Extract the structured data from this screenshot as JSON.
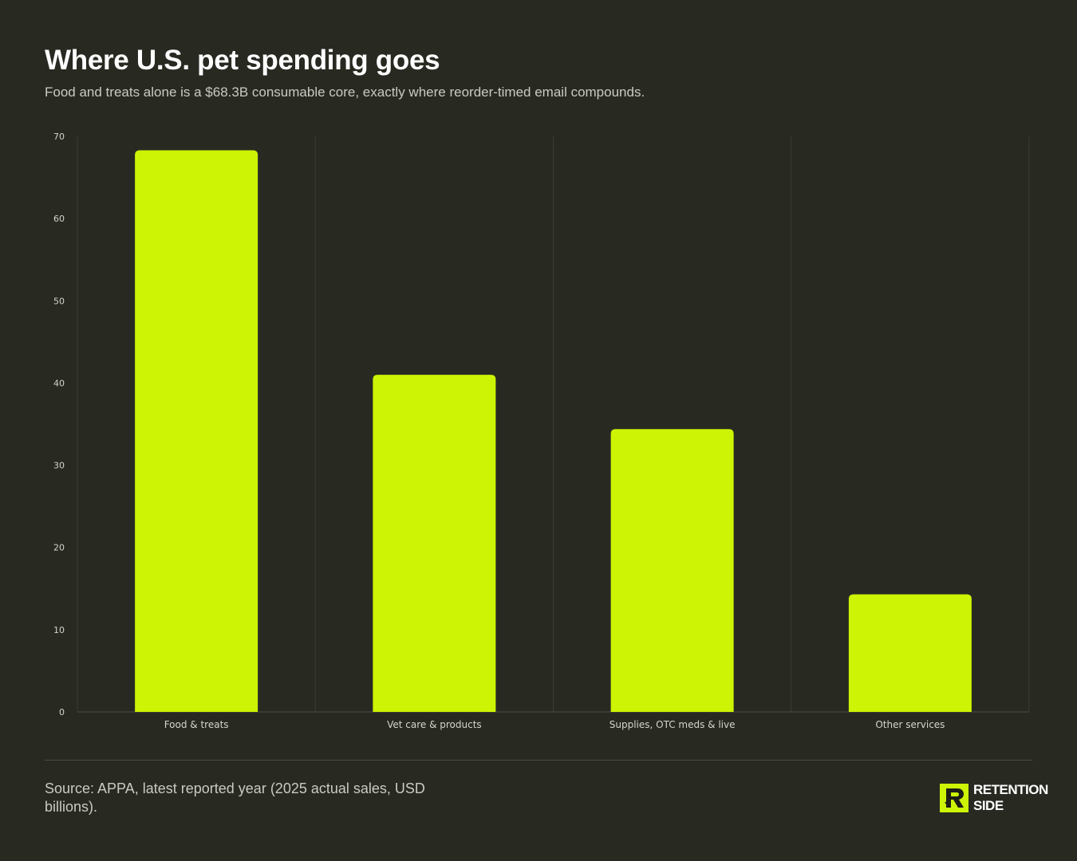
{
  "header": {
    "title": "Where U.S. pet spending goes",
    "subtitle": "Food and treats alone is a $68.3B consumable core, exactly where reorder-timed email compounds."
  },
  "footer": {
    "source": "Source: APPA, latest reported year (2025 actual sales, USD billions).",
    "logo_line1": "RETENTION",
    "logo_line2": "SIDE"
  },
  "colors": {
    "background": "#282a22",
    "bar": "#ccf404",
    "grid": "#3a3c34",
    "axis_text": "#d4d6cc"
  },
  "chart_data": {
    "type": "bar",
    "categories": [
      "Food & treats",
      "Vet care & products",
      "Supplies, OTC meds & live",
      "Other services"
    ],
    "values": [
      68.3,
      41.0,
      34.4,
      14.3
    ],
    "ylim": [
      0,
      70
    ],
    "yticks": [
      0,
      10,
      20,
      30,
      40,
      50,
      60,
      70
    ],
    "xlabel": "",
    "ylabel": "",
    "grid": "vertical separators between categories",
    "legend": "none"
  }
}
